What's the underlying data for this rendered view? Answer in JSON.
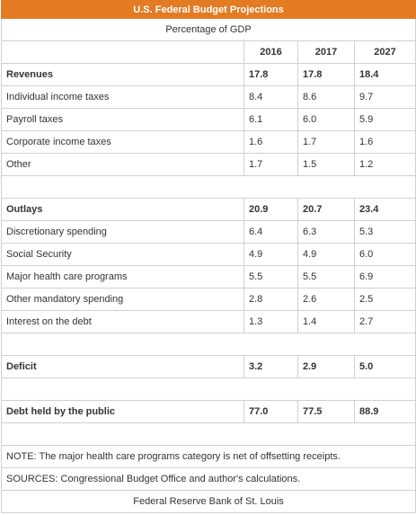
{
  "table": {
    "title": "U.S. Federal Budget Projections",
    "subtitle": "Percentage of GDP",
    "columns": [
      "2016",
      "2017",
      "2027"
    ],
    "sections": [
      {
        "rows": [
          [
            "Revenues",
            "17.8",
            "17.8",
            "18.4"
          ],
          [
            "Individual income taxes",
            "8.4",
            "8.6",
            "9.7"
          ],
          [
            "Payroll taxes",
            "6.1",
            "6.0",
            "5.9"
          ],
          [
            "Corporate income taxes",
            "1.6",
            "1.7",
            "1.6"
          ],
          [
            "Other",
            "1.7",
            "1.5",
            "1.2"
          ]
        ]
      },
      {
        "rows": [
          [
            "Outlays",
            "20.9",
            "20.7",
            "23.4"
          ],
          [
            "Discretionary spending",
            "6.4",
            "6.3",
            "5.3"
          ],
          [
            "Social Security",
            "4.9",
            "4.9",
            "6.0"
          ],
          [
            "Major health care programs",
            "5.5",
            "5.5",
            "6.9"
          ],
          [
            "Other mandatory spending",
            "2.8",
            "2.6",
            "2.5"
          ],
          [
            "Interest on the debt",
            "1.3",
            "1.4",
            "2.7"
          ]
        ]
      },
      {
        "rows": [
          [
            "Deficit",
            "3.2",
            "2.9",
            "5.0"
          ]
        ]
      },
      {
        "rows": [
          [
            "Debt held by the public",
            "77.0",
            "77.5",
            "88.9"
          ]
        ]
      }
    ],
    "notes": [
      "NOTE: The major health care programs category is net of offsetting receipts.",
      "SOURCES: Congressional Budget Office and author's calculations."
    ],
    "footer": "Federal Reserve Bank of St. Louis"
  }
}
